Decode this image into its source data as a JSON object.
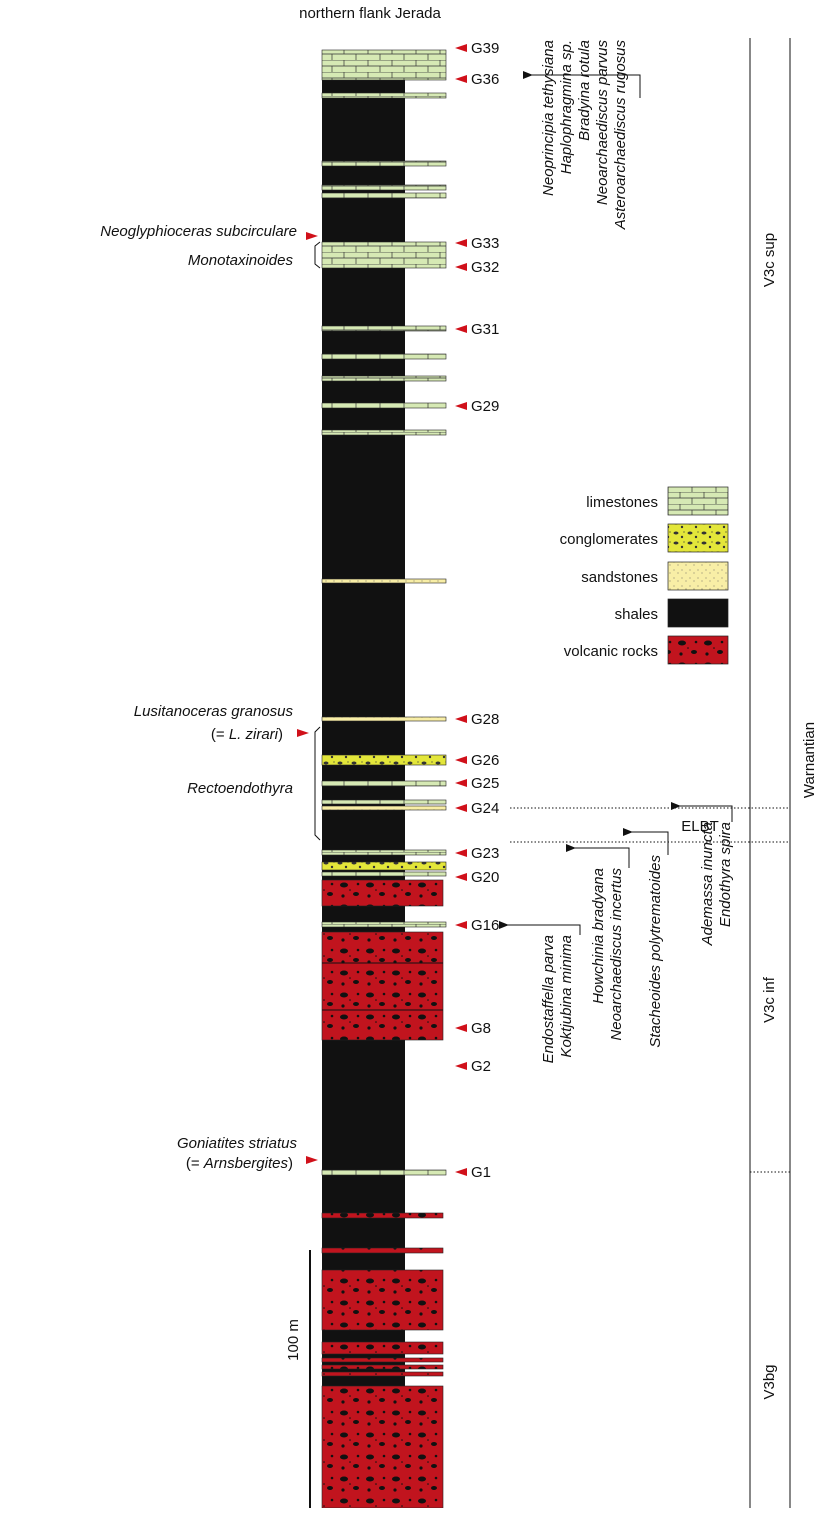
{
  "header": {
    "title": "northern flank Jerada"
  },
  "samples": [
    "G39",
    "G36",
    "G33",
    "G32",
    "G31",
    "G29",
    "G28",
    "G26",
    "G25",
    "G24",
    "G23",
    "G20",
    "G16",
    "G8",
    "G2",
    "G1"
  ],
  "annotations": [
    {
      "parts": [
        {
          "text": "Neoglyphioceras subcirculare",
          "italic": true
        }
      ]
    },
    {
      "parts": [
        {
          "text": "Monotaxinoides",
          "italic": true
        }
      ]
    },
    {
      "parts": [
        {
          "text": "Lusitanoceras granosus",
          "italic": true
        }
      ]
    },
    {
      "parts": [
        {
          "text": "(= ",
          "italic": false
        },
        {
          "text": "L. zirari",
          "italic": true
        },
        {
          "text": ")",
          "italic": false
        }
      ]
    },
    {
      "parts": [
        {
          "text": "Rectoendothyra",
          "italic": true
        }
      ]
    },
    {
      "parts": [
        {
          "text": "Goniatites striatus",
          "italic": true
        }
      ]
    },
    {
      "parts": [
        {
          "text": "(= ",
          "italic": false
        },
        {
          "text": "Arnsbergites",
          "italic": true
        },
        {
          "text": ")",
          "italic": false
        }
      ]
    }
  ],
  "fossil_groups": [
    [
      "Neoprincipia tethysiana",
      "Haplophragmina sp.",
      "Bradyina rotula",
      "Neoarchaediscus parvus",
      "Asteroarchaediscus rugosus"
    ],
    [
      "Endostaffella parva",
      "Koktjubina minima"
    ],
    [
      "Howchinia bradyana",
      "Neoarchaediscus incertus"
    ],
    [
      "Stacheoides polytrematoides"
    ],
    [
      "Ademassa inuncta",
      "Endothyra spira"
    ]
  ],
  "legend": [
    "limestones",
    "conglomerates",
    "sandstones",
    "shales",
    "volcanic rocks"
  ],
  "zones": [
    "V3c sup",
    "ELBT",
    "V3c inf",
    "V3bg"
  ],
  "stage": "Warnantian",
  "scale": "100 m"
}
